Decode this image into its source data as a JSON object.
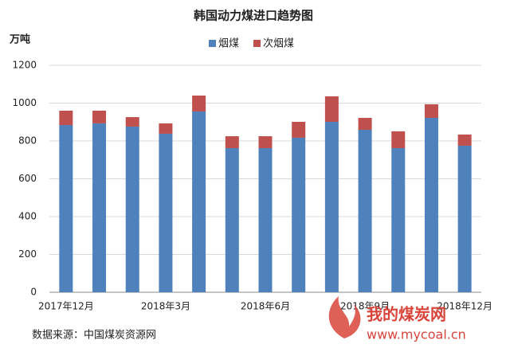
{
  "chart_data": {
    "type": "stacked_bar",
    "title": "韩国动力煤进口趋势图",
    "y_label": "万吨",
    "categories": [
      "2017年12月",
      null,
      null,
      "2018年3月",
      null,
      null,
      "2018年6月",
      null,
      null,
      "2018年9月",
      null,
      null,
      "2018年12月"
    ],
    "series": [
      {
        "name": "烟煤",
        "color": "#4f81bd",
        "values": [
          884,
          893,
          876,
          838,
          956,
          762,
          762,
          817,
          901,
          859,
          762,
          922,
          775
        ]
      },
      {
        "name": "次烟煤",
        "color": "#c0504d",
        "values": [
          76,
          67,
          50,
          55,
          84,
          63,
          63,
          84,
          135,
          63,
          89,
          72,
          59
        ]
      }
    ],
    "ylim": [
      0,
      1200
    ],
    "yticks": [
      0,
      200,
      400,
      600,
      800,
      1000,
      1200
    ],
    "grid": true,
    "legend": "top",
    "source": "数据来源：中国煤炭资源网",
    "logo": [
      "我的煤炭网",
      "www.mycoal.cn"
    ]
  }
}
